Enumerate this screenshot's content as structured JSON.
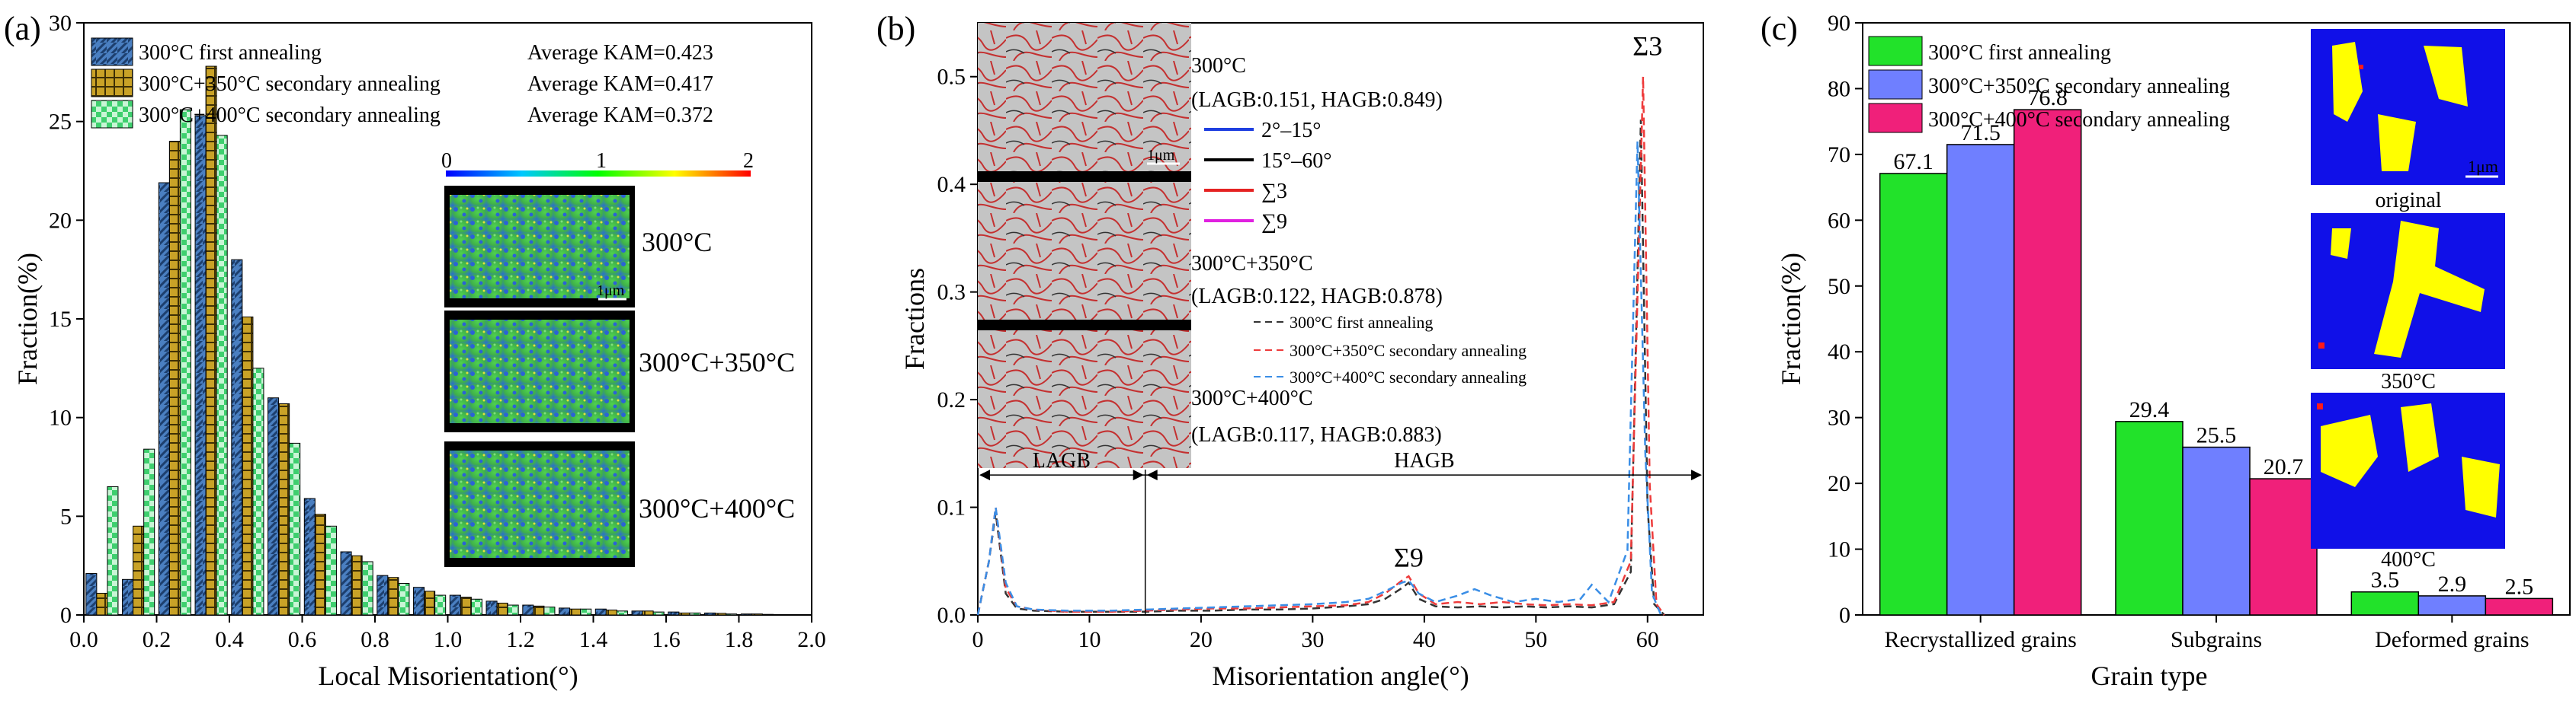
{
  "chart_data": [
    {
      "panel": "(a)",
      "type": "bar",
      "xlabel": "Local Misorientation(°)",
      "ylabel": "Fraction(%)",
      "xlim": [
        0,
        2.0
      ],
      "ylim": [
        0,
        30
      ],
      "xticks": [
        "0.0",
        "0.2",
        "0.4",
        "0.6",
        "0.8",
        "1.0",
        "1.2",
        "1.4",
        "1.6",
        "1.8",
        "2.0"
      ],
      "yticks": [
        "0",
        "5",
        "10",
        "15",
        "20",
        "25",
        "30"
      ],
      "bin_centers": [
        0.05,
        0.15,
        0.25,
        0.35,
        0.45,
        0.55,
        0.65,
        0.75,
        0.85,
        0.95,
        1.05,
        1.15,
        1.25,
        1.35,
        1.45,
        1.55,
        1.65,
        1.75,
        1.85
      ],
      "series": [
        {
          "name": "300°C first annealing",
          "color": "#4a7fc1",
          "kam_label": "Average KAM=0.423",
          "values": [
            2.1,
            1.8,
            21.9,
            25.3,
            18.0,
            11.0,
            5.9,
            3.2,
            2.0,
            1.4,
            1.0,
            0.7,
            0.5,
            0.35,
            0.3,
            0.2,
            0.15,
            0.1,
            0.05
          ]
        },
        {
          "name": "300°C+350°C secondary annealing",
          "color": "#c9a227",
          "kam_label": "Average KAM=0.417",
          "values": [
            1.1,
            4.5,
            24.0,
            27.8,
            15.1,
            10.7,
            5.1,
            3.0,
            1.9,
            1.2,
            0.9,
            0.6,
            0.45,
            0.3,
            0.25,
            0.2,
            0.1,
            0.08,
            0.05
          ]
        },
        {
          "name": "300°C+400°C secondary annealing",
          "color": "#3ecf6e",
          "kam_label": "Average KAM=0.372",
          "values": [
            6.5,
            8.4,
            25.6,
            24.3,
            12.5,
            8.7,
            4.5,
            2.7,
            1.6,
            1.0,
            0.8,
            0.5,
            0.4,
            0.3,
            0.2,
            0.15,
            0.1,
            0.05,
            0.03
          ]
        }
      ],
      "colorbar": {
        "min_label": "0",
        "mid_label": "1",
        "max_label": "2"
      },
      "inset_labels": [
        "300°C",
        "300°C+350°C",
        "300°C+400°C"
      ],
      "scale_bar": "1μm"
    },
    {
      "panel": "(b)",
      "type": "line",
      "xlabel": "Misorientation angle(°)",
      "ylabel": "Fractions",
      "xlim": [
        0,
        65
      ],
      "ylim": [
        0,
        0.55
      ],
      "xticks": [
        "0",
        "10",
        "20",
        "30",
        "40",
        "50",
        "60"
      ],
      "yticks": [
        "0.0",
        "0.1",
        "0.2",
        "0.3",
        "0.4",
        "0.5"
      ],
      "series": [
        {
          "name": "300°C first annealing",
          "color": "#333333",
          "x": [
            0,
            1,
            1.6,
            2.5,
            3.5,
            5,
            8,
            12,
            15,
            18,
            21,
            24,
            27,
            30,
            33,
            35,
            36.5,
            38,
            38.6,
            39.5,
            41,
            43,
            45,
            47,
            49,
            51,
            53,
            55,
            57,
            58.5,
            59.4,
            60,
            60.6,
            61.5
          ],
          "y": [
            0.0,
            0.05,
            0.095,
            0.02,
            0.006,
            0.004,
            0.003,
            0.003,
            0.003,
            0.004,
            0.004,
            0.005,
            0.005,
            0.006,
            0.008,
            0.01,
            0.015,
            0.025,
            0.03,
            0.015,
            0.008,
            0.007,
            0.008,
            0.007,
            0.008,
            0.007,
            0.008,
            0.007,
            0.01,
            0.04,
            0.46,
            0.1,
            0.01,
            0.0
          ]
        },
        {
          "name": "300°C+350°C secondary annealing",
          "color": "#ee3b3b",
          "x": [
            0,
            1,
            1.6,
            2.5,
            3.5,
            5,
            8,
            12,
            15,
            18,
            21,
            24,
            27,
            30,
            33,
            35,
            36.5,
            38,
            38.6,
            39.5,
            41,
            43,
            45,
            47,
            49,
            51,
            53,
            55,
            57,
            58.5,
            59.6,
            60.2,
            60.8,
            61.5
          ],
          "y": [
            0.0,
            0.05,
            0.1,
            0.025,
            0.008,
            0.005,
            0.003,
            0.003,
            0.004,
            0.005,
            0.006,
            0.006,
            0.007,
            0.008,
            0.009,
            0.012,
            0.02,
            0.032,
            0.036,
            0.02,
            0.01,
            0.012,
            0.01,
            0.012,
            0.01,
            0.009,
            0.01,
            0.009,
            0.012,
            0.05,
            0.5,
            0.12,
            0.01,
            0.0
          ]
        },
        {
          "name": "300°C+400°C secondary annealing",
          "color": "#3a8ee6",
          "x": [
            0,
            1,
            1.6,
            2.5,
            3.5,
            5,
            8,
            12,
            15,
            18,
            21,
            24,
            27,
            30,
            33,
            35,
            36.5,
            38,
            38.6,
            39.5,
            41,
            43,
            44.5,
            46,
            48,
            50,
            52,
            54,
            55,
            56.5,
            58.2,
            59.1,
            59.8,
            60.4,
            61.2
          ],
          "y": [
            0.0,
            0.05,
            0.1,
            0.03,
            0.008,
            0.005,
            0.004,
            0.004,
            0.005,
            0.006,
            0.007,
            0.008,
            0.009,
            0.01,
            0.012,
            0.015,
            0.022,
            0.03,
            0.032,
            0.02,
            0.012,
            0.018,
            0.024,
            0.018,
            0.012,
            0.015,
            0.012,
            0.015,
            0.028,
            0.012,
            0.06,
            0.44,
            0.15,
            0.02,
            0.0
          ]
        }
      ],
      "annotations": {
        "sigma3": "Σ3",
        "sigma9": "Σ9",
        "lagb": "LAGB",
        "hagb": "HAGB",
        "lagb_hagb_boundary_deg": 15
      },
      "inset_text": {
        "t1": "300°C",
        "s1": "(LAGB:0.151, HAGB:0.849)",
        "t2": "300°C+350°C",
        "s2": "(LAGB:0.122, HAGB:0.878)",
        "t3": "300°C+400°C",
        "s3": "(LAGB:0.117, HAGB:0.883)",
        "scale_bar": "1μm"
      },
      "boundary_legend": [
        {
          "label": "2°–15°",
          "color": "#1f3fe0"
        },
        {
          "label": "15°–60°",
          "color": "#000000"
        },
        {
          "label": "∑3",
          "color": "#e52222"
        },
        {
          "label": "∑9",
          "color": "#e020e0"
        }
      ]
    },
    {
      "panel": "(c)",
      "type": "bar",
      "xlabel": "Grain type",
      "ylabel": "Fraction(%)",
      "ylim": [
        0,
        90
      ],
      "yticks": [
        "0",
        "10",
        "20",
        "30",
        "40",
        "50",
        "60",
        "70",
        "80",
        "90"
      ],
      "categories": [
        "Recrystallized grains",
        "Subgrains",
        "Deformed grains"
      ],
      "series": [
        {
          "name": "300°C first annealing",
          "color": "#22e22a",
          "values": [
            67.1,
            29.4,
            3.5
          ],
          "labels": [
            "67.1",
            "29.4",
            "3.5"
          ]
        },
        {
          "name": "300°C+350°C secondary annealing",
          "color": "#6f7fff",
          "values": [
            71.5,
            25.5,
            2.9
          ],
          "labels": [
            "71.5",
            "25.5",
            "2.9"
          ]
        },
        {
          "name": "300°C+400°C secondary annealing",
          "color": "#f0207a",
          "values": [
            76.8,
            20.7,
            2.5
          ],
          "labels": [
            "76.8",
            "20.7",
            "2.5"
          ]
        }
      ],
      "inset_labels": [
        "original",
        "350°C",
        "400°C"
      ],
      "scale_bar": "1μm"
    }
  ],
  "palette": {
    "axis": "#000000",
    "inset_gray": "#b9b9b9",
    "map_blue": "#1010e8",
    "map_yellow": "#ffff00",
    "map_red": "#ff1a1a",
    "kam_green": "#3bbf3b"
  }
}
